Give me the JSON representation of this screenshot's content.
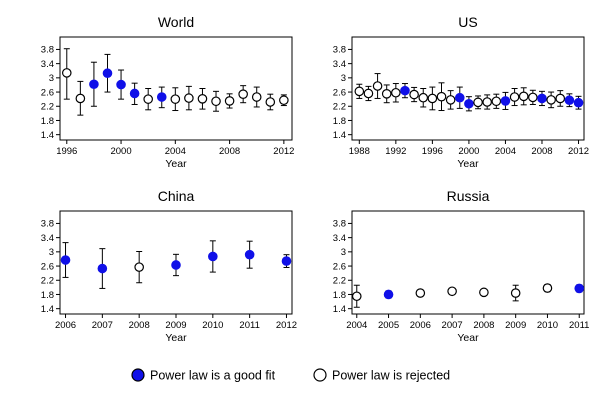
{
  "legend": {
    "good_fit_label": "Power law is a good fit",
    "rejected_label": "Power law is rejected",
    "good_fit_color": "#1010e8",
    "rejected_color": "#ffffff"
  },
  "chart_data": [
    {
      "type": "scatter",
      "title": "World",
      "xlabel": "Year",
      "ylabel": "",
      "xlim": [
        1995.5,
        2012.6
      ],
      "ylim": [
        1.25,
        4.15
      ],
      "xticks": [
        1996,
        2000,
        2004,
        2008,
        2012
      ],
      "yticks": [
        1.4,
        1.8,
        2.2,
        2.6,
        3,
        3.4,
        3.8
      ],
      "ytick_labels": [
        "1.4",
        "1.8",
        "2.2",
        "2.6",
        "3",
        "3.4",
        "3.8"
      ],
      "points": [
        {
          "x": 1996,
          "y": 3.14,
          "lo": 2.4,
          "hi": 3.82,
          "fit": false
        },
        {
          "x": 1997,
          "y": 2.42,
          "lo": 1.95,
          "hi": 2.9,
          "fit": false
        },
        {
          "x": 1998,
          "y": 2.82,
          "lo": 2.2,
          "hi": 3.44,
          "fit": true
        },
        {
          "x": 1999,
          "y": 3.13,
          "lo": 2.6,
          "hi": 3.66,
          "fit": true
        },
        {
          "x": 2000,
          "y": 2.81,
          "lo": 2.4,
          "hi": 3.22,
          "fit": true
        },
        {
          "x": 2001,
          "y": 2.56,
          "lo": 2.25,
          "hi": 2.85,
          "fit": true
        },
        {
          "x": 2002,
          "y": 2.4,
          "lo": 2.1,
          "hi": 2.7,
          "fit": false
        },
        {
          "x": 2003,
          "y": 2.46,
          "lo": 2.16,
          "hi": 2.74,
          "fit": true
        },
        {
          "x": 2004,
          "y": 2.4,
          "lo": 2.08,
          "hi": 2.72,
          "fit": false
        },
        {
          "x": 2005,
          "y": 2.43,
          "lo": 2.1,
          "hi": 2.76,
          "fit": false
        },
        {
          "x": 2006,
          "y": 2.41,
          "lo": 2.12,
          "hi": 2.7,
          "fit": false
        },
        {
          "x": 2007,
          "y": 2.34,
          "lo": 2.06,
          "hi": 2.62,
          "fit": false
        },
        {
          "x": 2008,
          "y": 2.35,
          "lo": 2.15,
          "hi": 2.55,
          "fit": false
        },
        {
          "x": 2009,
          "y": 2.54,
          "lo": 2.3,
          "hi": 2.78,
          "fit": false
        },
        {
          "x": 2010,
          "y": 2.46,
          "lo": 2.18,
          "hi": 2.74,
          "fit": false
        },
        {
          "x": 2011,
          "y": 2.32,
          "lo": 2.1,
          "hi": 2.54,
          "fit": false
        },
        {
          "x": 2012,
          "y": 2.37,
          "lo": 2.22,
          "hi": 2.52,
          "fit": false
        }
      ]
    },
    {
      "type": "scatter",
      "title": "US",
      "xlabel": "Year",
      "ylabel": "",
      "xlim": [
        1987.2,
        2012.6
      ],
      "ylim": [
        1.25,
        4.15
      ],
      "xticks": [
        1988,
        1992,
        1996,
        2000,
        2004,
        2008,
        2012
      ],
      "yticks": [
        1.4,
        1.8,
        2.2,
        2.6,
        3,
        3.4,
        3.8
      ],
      "ytick_labels": [
        "1.4",
        "1.8",
        "2.2",
        "2.6",
        "3",
        "3.4",
        "3.8"
      ],
      "points": [
        {
          "x": 1988,
          "y": 2.62,
          "lo": 2.42,
          "hi": 2.82,
          "fit": false
        },
        {
          "x": 1989,
          "y": 2.56,
          "lo": 2.36,
          "hi": 2.76,
          "fit": false
        },
        {
          "x": 1990,
          "y": 2.77,
          "lo": 2.42,
          "hi": 3.12,
          "fit": false
        },
        {
          "x": 1991,
          "y": 2.55,
          "lo": 2.3,
          "hi": 2.8,
          "fit": false
        },
        {
          "x": 1992,
          "y": 2.58,
          "lo": 2.32,
          "hi": 2.84,
          "fit": false
        },
        {
          "x": 1993,
          "y": 2.64,
          "lo": 2.44,
          "hi": 2.84,
          "fit": true
        },
        {
          "x": 1994,
          "y": 2.53,
          "lo": 2.33,
          "hi": 2.73,
          "fit": false
        },
        {
          "x": 1995,
          "y": 2.44,
          "lo": 2.18,
          "hi": 2.7,
          "fit": false
        },
        {
          "x": 1996,
          "y": 2.42,
          "lo": 2.1,
          "hi": 2.74,
          "fit": false
        },
        {
          "x": 1997,
          "y": 2.47,
          "lo": 2.08,
          "hi": 2.86,
          "fit": false
        },
        {
          "x": 1998,
          "y": 2.38,
          "lo": 2.12,
          "hi": 2.64,
          "fit": false
        },
        {
          "x": 1999,
          "y": 2.44,
          "lo": 2.14,
          "hi": 2.74,
          "fit": true
        },
        {
          "x": 2000,
          "y": 2.27,
          "lo": 2.07,
          "hi": 2.47,
          "fit": true
        },
        {
          "x": 2001,
          "y": 2.31,
          "lo": 2.13,
          "hi": 2.49,
          "fit": false
        },
        {
          "x": 2002,
          "y": 2.32,
          "lo": 2.12,
          "hi": 2.52,
          "fit": false
        },
        {
          "x": 2003,
          "y": 2.34,
          "lo": 2.14,
          "hi": 2.54,
          "fit": false
        },
        {
          "x": 2004,
          "y": 2.35,
          "lo": 2.11,
          "hi": 2.59,
          "fit": true
        },
        {
          "x": 2005,
          "y": 2.46,
          "lo": 2.22,
          "hi": 2.7,
          "fit": false
        },
        {
          "x": 2006,
          "y": 2.48,
          "lo": 2.24,
          "hi": 2.72,
          "fit": false
        },
        {
          "x": 2007,
          "y": 2.45,
          "lo": 2.25,
          "hi": 2.65,
          "fit": false
        },
        {
          "x": 2008,
          "y": 2.42,
          "lo": 2.22,
          "hi": 2.62,
          "fit": true
        },
        {
          "x": 2009,
          "y": 2.38,
          "lo": 2.16,
          "hi": 2.6,
          "fit": false
        },
        {
          "x": 2010,
          "y": 2.42,
          "lo": 2.2,
          "hi": 2.64,
          "fit": false
        },
        {
          "x": 2011,
          "y": 2.37,
          "lo": 2.19,
          "hi": 2.55,
          "fit": true
        },
        {
          "x": 2012,
          "y": 2.3,
          "lo": 2.12,
          "hi": 2.48,
          "fit": true
        }
      ]
    },
    {
      "type": "scatter",
      "title": "China",
      "xlabel": "Year",
      "ylabel": "",
      "xlim": [
        2005.85,
        2012.15
      ],
      "ylim": [
        1.25,
        4.15
      ],
      "xticks": [
        2006,
        2007,
        2008,
        2009,
        2010,
        2011,
        2012
      ],
      "yticks": [
        1.4,
        1.8,
        2.2,
        2.6,
        3,
        3.4,
        3.8
      ],
      "ytick_labels": [
        "1.4",
        "1.8",
        "2.2",
        "2.6",
        "3",
        "3.4",
        "3.8"
      ],
      "points": [
        {
          "x": 2006,
          "y": 2.77,
          "lo": 2.28,
          "hi": 3.26,
          "fit": true
        },
        {
          "x": 2007,
          "y": 2.53,
          "lo": 1.97,
          "hi": 3.09,
          "fit": true
        },
        {
          "x": 2008,
          "y": 2.57,
          "lo": 2.13,
          "hi": 3.01,
          "fit": false
        },
        {
          "x": 2009,
          "y": 2.63,
          "lo": 2.33,
          "hi": 2.93,
          "fit": true
        },
        {
          "x": 2010,
          "y": 2.87,
          "lo": 2.43,
          "hi": 3.31,
          "fit": true
        },
        {
          "x": 2011,
          "y": 2.92,
          "lo": 2.54,
          "hi": 3.3,
          "fit": true
        },
        {
          "x": 2012,
          "y": 2.74,
          "lo": 2.56,
          "hi": 2.92,
          "fit": true
        }
      ]
    },
    {
      "type": "scatter",
      "title": "Russia",
      "xlabel": "Year",
      "ylabel": "",
      "xlim": [
        2003.85,
        2011.15
      ],
      "ylim": [
        1.25,
        4.15
      ],
      "xticks": [
        2004,
        2005,
        2006,
        2007,
        2008,
        2009,
        2010,
        2011
      ],
      "yticks": [
        1.4,
        1.8,
        2.2,
        2.6,
        3,
        3.4,
        3.8
      ],
      "ytick_labels": [
        "1.4",
        "1.8",
        "2.2",
        "2.6",
        "3",
        "3.4",
        "3.8"
      ],
      "points": [
        {
          "x": 2004,
          "y": 1.75,
          "lo": 1.44,
          "hi": 2.06,
          "fit": false
        },
        {
          "x": 2005,
          "y": 1.8,
          "lo": 1.7,
          "hi": 1.9,
          "fit": true
        },
        {
          "x": 2006,
          "y": 1.84,
          "lo": 1.77,
          "hi": 1.91,
          "fit": false
        },
        {
          "x": 2007,
          "y": 1.89,
          "lo": 1.83,
          "hi": 1.95,
          "fit": false
        },
        {
          "x": 2008,
          "y": 1.86,
          "lo": 1.8,
          "hi": 1.92,
          "fit": false
        },
        {
          "x": 2009,
          "y": 1.84,
          "lo": 1.62,
          "hi": 2.06,
          "fit": false
        },
        {
          "x": 2010,
          "y": 1.98,
          "lo": 1.88,
          "hi": 2.08,
          "fit": false
        },
        {
          "x": 2011,
          "y": 1.97,
          "lo": 1.87,
          "hi": 2.07,
          "fit": true
        }
      ]
    }
  ]
}
